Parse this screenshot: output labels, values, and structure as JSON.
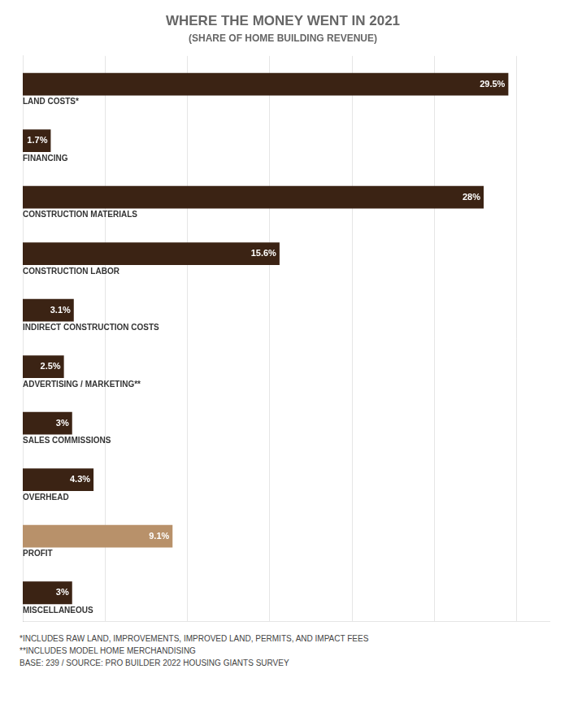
{
  "chart_data": {
    "type": "bar",
    "orientation": "horizontal",
    "title": "WHERE THE MONEY WENT IN 2021",
    "subtitle": "(SHARE OF HOME BUILDING REVENUE)",
    "categories": [
      "LAND COSTS*",
      "FINANCING",
      "CONSTRUCTION MATERIALS",
      "CONSTRUCTION LABOR",
      "INDIRECT CONSTRUCTION COSTS",
      "ADVERTISING / MARKETING**",
      "SALES COMMISSIONS",
      "OVERHEAD",
      "PROFIT",
      "MISCELLANEOUS"
    ],
    "values": [
      29.5,
      1.7,
      28.0,
      15.6,
      3.1,
      2.5,
      3.0,
      4.3,
      9.1,
      3.0
    ],
    "value_labels": [
      "29.5%",
      "1.7%",
      "28%",
      "15.6%",
      "3.1%",
      "2.5%",
      "3%",
      "4.3%",
      "9.1%",
      "3%"
    ],
    "data_labels": true,
    "colors": [
      "#3b2314",
      "#3b2314",
      "#3b2314",
      "#3b2314",
      "#3b2314",
      "#3b2314",
      "#3b2314",
      "#3b2314",
      "#b8916a",
      "#3b2314"
    ],
    "xlim": [
      0,
      32
    ],
    "xticks": [
      5,
      10,
      15,
      20,
      25,
      30
    ],
    "grid": true,
    "tick_labels": false,
    "annotations": [
      "*INCLUDES RAW LAND, IMPROVEMENTS, IMPROVED LAND, PERMITS, AND IMPACT FEES",
      "**INCLUDES MODEL HOME MERCHANDISING",
      "BASE: 239 / SOURCE: PRO BUILDER 2022 HOUSING GIANTS SURVEY"
    ]
  }
}
